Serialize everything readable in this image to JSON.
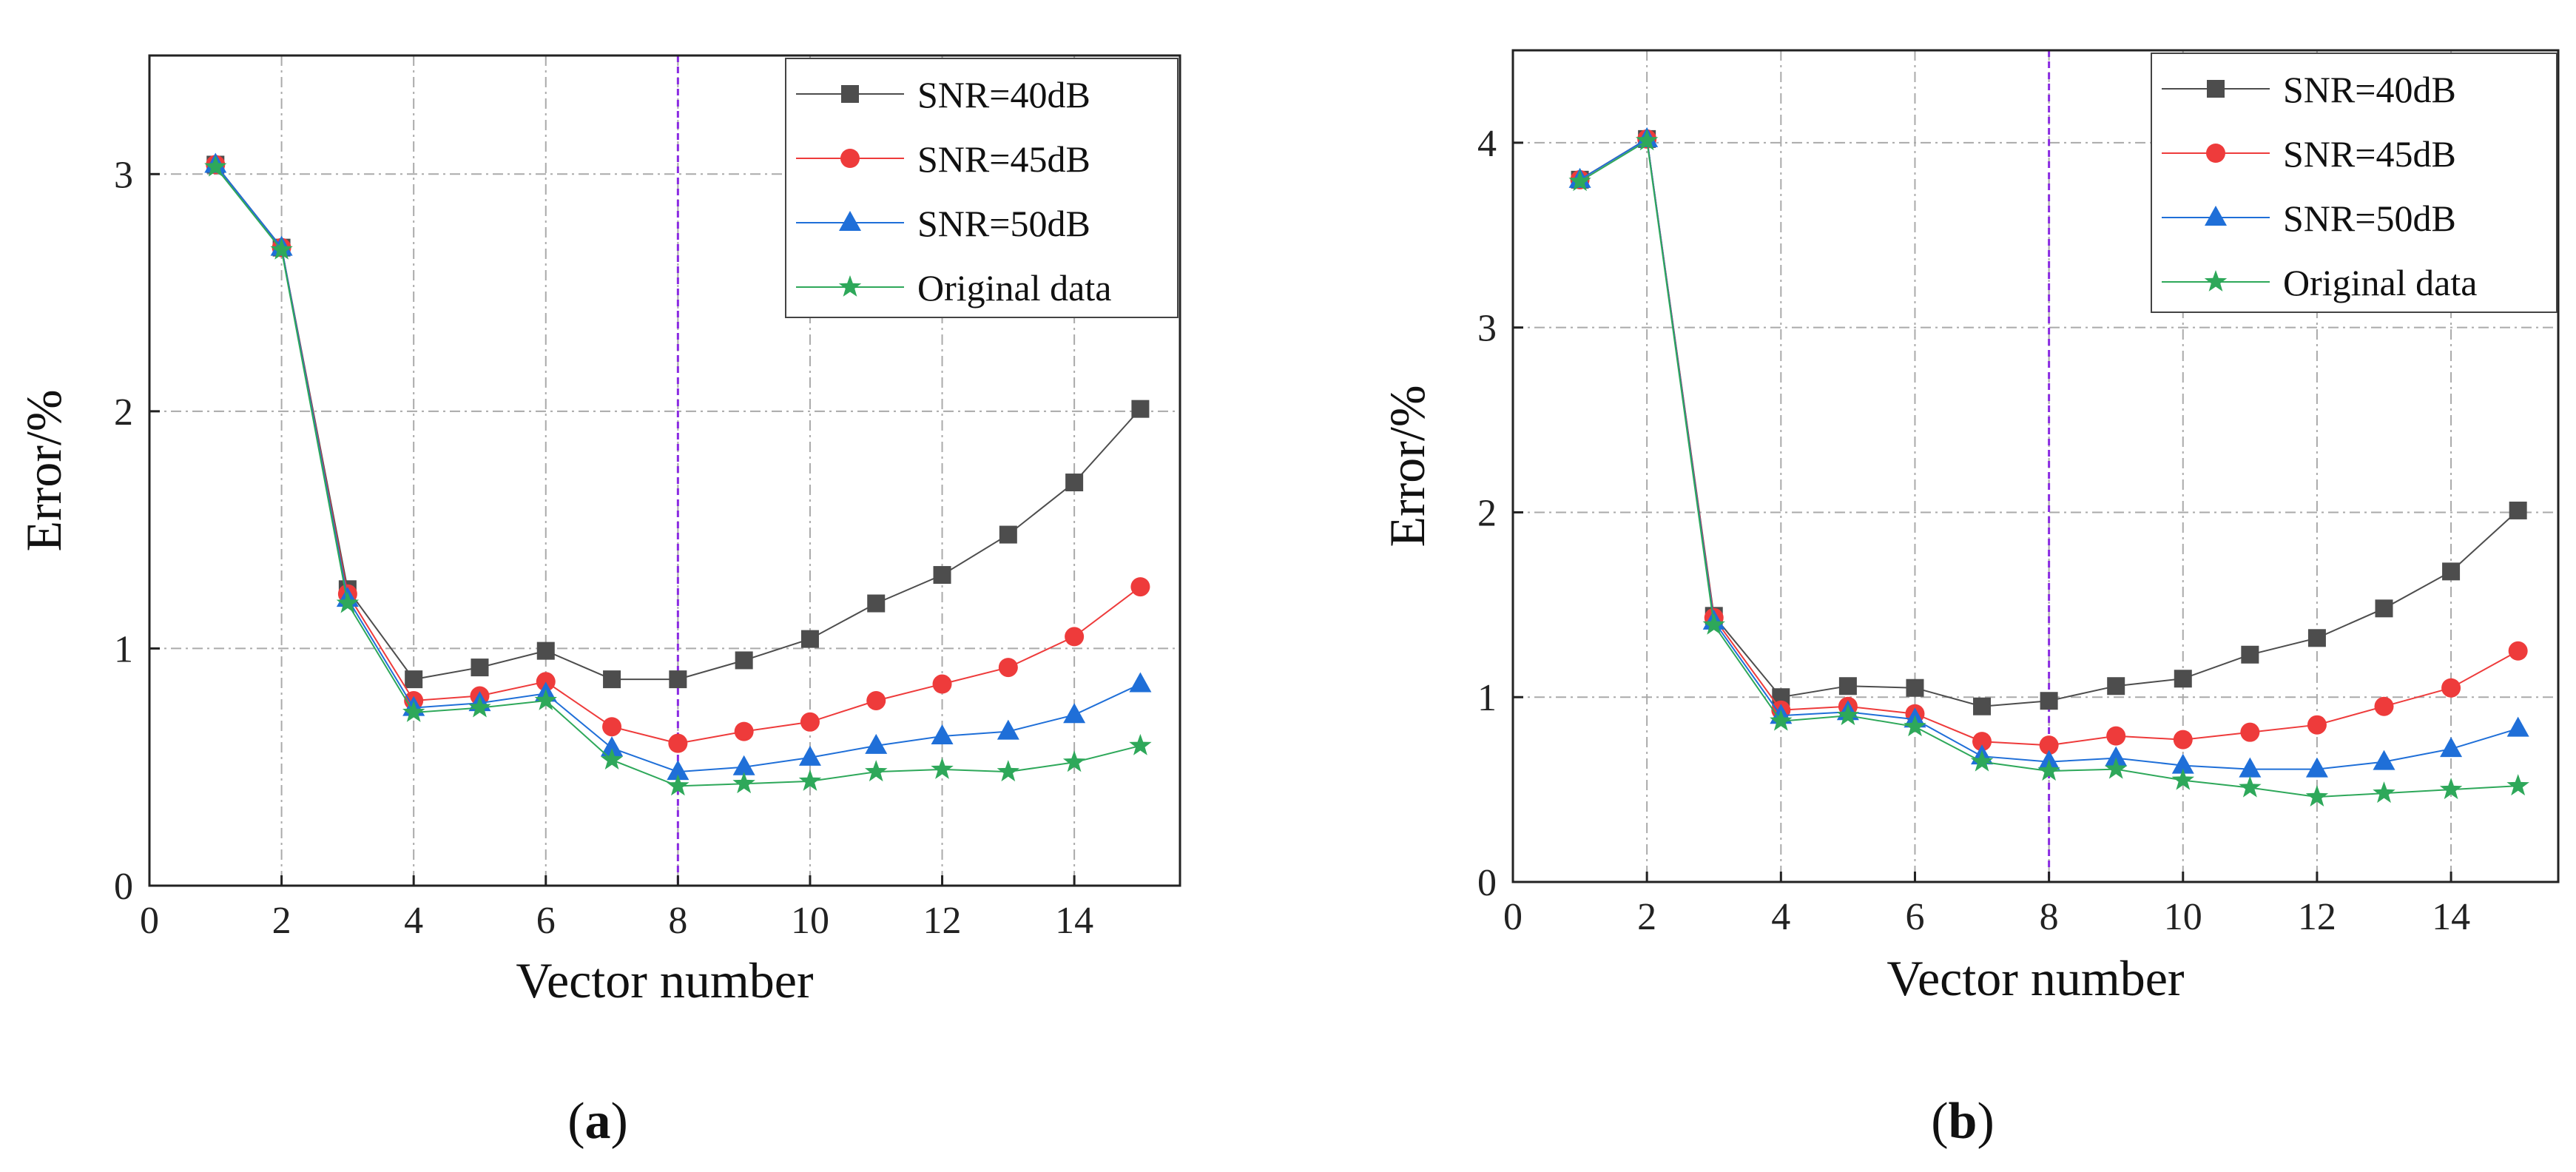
{
  "figure": {
    "caption_a": {
      "open": "(",
      "letter": "a",
      "close": ")"
    },
    "caption_b": {
      "open": "(",
      "letter": "b",
      "close": ")"
    },
    "marker_glyphs": {
      "square": "square",
      "circle": "circle",
      "triangle": "triangle",
      "star": "star"
    }
  },
  "chart_data": [
    {
      "type": "line",
      "panel": "a",
      "title": "",
      "xlabel": "Vector number",
      "ylabel": "Error/%",
      "xlim": [
        0,
        15.6
      ],
      "ylim": [
        0,
        3.5
      ],
      "xticks": [
        0,
        2,
        4,
        6,
        8,
        10,
        12,
        14
      ],
      "yticks": [
        0,
        1,
        2,
        3
      ],
      "grid": true,
      "vline_x": 8,
      "vline_color": "#8a2be2",
      "legend_position": "top-right",
      "x": [
        1,
        2,
        3,
        4,
        5,
        6,
        7,
        8,
        9,
        10,
        11,
        12,
        13,
        14,
        15
      ],
      "series": [
        {
          "name": "SNR=40dB",
          "color": "#4d4d4d",
          "marker": "square",
          "values": [
            3.04,
            2.69,
            1.25,
            0.87,
            0.92,
            0.99,
            0.87,
            0.87,
            0.95,
            1.04,
            1.19,
            1.31,
            1.48,
            1.7,
            2.01
          ]
        },
        {
          "name": "SNR=45dB",
          "color": "#ee3b3b",
          "marker": "circle",
          "values": [
            3.04,
            2.69,
            1.23,
            0.78,
            0.8,
            0.86,
            0.67,
            0.6,
            0.65,
            0.69,
            0.78,
            0.85,
            0.92,
            1.05,
            1.26
          ]
        },
        {
          "name": "SNR=50dB",
          "color": "#1f6fd8",
          "marker": "triangle",
          "values": [
            3.04,
            2.69,
            1.21,
            0.75,
            0.77,
            0.81,
            0.58,
            0.48,
            0.5,
            0.54,
            0.59,
            0.63,
            0.65,
            0.72,
            0.85
          ]
        },
        {
          "name": "Original data",
          "color": "#2ea85a",
          "marker": "star",
          "values": [
            3.03,
            2.68,
            1.19,
            0.73,
            0.75,
            0.78,
            0.53,
            0.42,
            0.43,
            0.44,
            0.48,
            0.49,
            0.48,
            0.52,
            0.59
          ]
        }
      ]
    },
    {
      "type": "line",
      "panel": "b",
      "title": "",
      "xlabel": "Vector number",
      "ylabel": "Error/%",
      "xlim": [
        0,
        15.6
      ],
      "ylim": [
        0,
        4.5
      ],
      "xticks": [
        0,
        2,
        4,
        6,
        8,
        10,
        12,
        14
      ],
      "yticks": [
        0,
        1,
        2,
        3,
        4
      ],
      "grid": true,
      "vline_x": 8,
      "vline_color": "#8a2be2",
      "legend_position": "top-right",
      "x": [
        1,
        2,
        3,
        4,
        5,
        6,
        7,
        8,
        9,
        10,
        11,
        12,
        13,
        14,
        15
      ],
      "series": [
        {
          "name": "SNR=40dB",
          "color": "#4d4d4d",
          "marker": "square",
          "values": [
            3.8,
            4.02,
            1.44,
            1.0,
            1.06,
            1.05,
            0.95,
            0.98,
            1.06,
            1.1,
            1.23,
            1.32,
            1.48,
            1.68,
            2.01
          ]
        },
        {
          "name": "SNR=45dB",
          "color": "#ee3b3b",
          "marker": "circle",
          "values": [
            3.8,
            4.02,
            1.43,
            0.93,
            0.95,
            0.91,
            0.76,
            0.74,
            0.79,
            0.77,
            0.81,
            0.85,
            0.95,
            1.05,
            1.25
          ]
        },
        {
          "name": "SNR=50dB",
          "color": "#1f6fd8",
          "marker": "triangle",
          "values": [
            3.8,
            4.02,
            1.41,
            0.9,
            0.92,
            0.88,
            0.68,
            0.65,
            0.67,
            0.63,
            0.61,
            0.61,
            0.65,
            0.72,
            0.83
          ]
        },
        {
          "name": "Original data",
          "color": "#2ea85a",
          "marker": "star",
          "values": [
            3.79,
            4.01,
            1.39,
            0.87,
            0.9,
            0.84,
            0.65,
            0.6,
            0.61,
            0.55,
            0.51,
            0.46,
            0.48,
            0.5,
            0.52
          ]
        }
      ]
    }
  ]
}
